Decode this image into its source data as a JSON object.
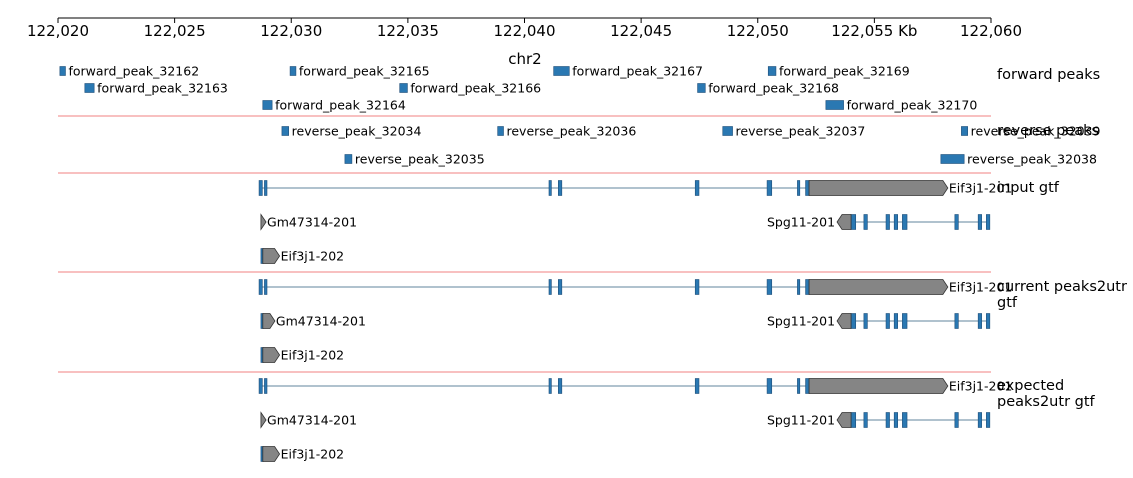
{
  "axis": {
    "start": 122020000,
    "end": 122060000,
    "ticks": [
      {
        "pos": 122020000,
        "label": "122,020"
      },
      {
        "pos": 122025000,
        "label": "122,025"
      },
      {
        "pos": 122030000,
        "label": "122,030"
      },
      {
        "pos": 122035000,
        "label": "122,035"
      },
      {
        "pos": 122040000,
        "label": "122,040"
      },
      {
        "pos": 122045000,
        "label": "122,045"
      },
      {
        "pos": 122050000,
        "label": "122,050"
      },
      {
        "pos": 122055000,
        "label": "122,055 Kb"
      },
      {
        "pos": 122060000,
        "label": "122,060"
      }
    ],
    "chrom": "chr2"
  },
  "colors": {
    "feature": "#2a78b2",
    "utr": "#858585",
    "separator": "#f08080"
  },
  "peak_tracks": [
    {
      "title": "forward peaks",
      "peaks": [
        {
          "name": "forward_peak_32162",
          "start": 122020080,
          "end": 122020320,
          "row": 0
        },
        {
          "name": "forward_peak_32163",
          "start": 122021150,
          "end": 122021550,
          "row": 1
        },
        {
          "name": "forward_peak_32164",
          "start": 122028780,
          "end": 122029180,
          "row": 2
        },
        {
          "name": "forward_peak_32165",
          "start": 122029950,
          "end": 122030200,
          "row": 0
        },
        {
          "name": "forward_peak_32166",
          "start": 122034650,
          "end": 122034980,
          "row": 1
        },
        {
          "name": "forward_peak_32167",
          "start": 122041250,
          "end": 122041920,
          "row": 0
        },
        {
          "name": "forward_peak_32168",
          "start": 122047420,
          "end": 122047750,
          "row": 1
        },
        {
          "name": "forward_peak_32169",
          "start": 122050450,
          "end": 122050780,
          "row": 0
        },
        {
          "name": "forward_peak_32170",
          "start": 122052920,
          "end": 122053680,
          "row": 2
        }
      ]
    },
    {
      "title": "reverse peaks",
      "peaks": [
        {
          "name": "reverse_peak_32034",
          "start": 122029600,
          "end": 122029890,
          "row": 0
        },
        {
          "name": "reverse_peak_32035",
          "start": 122032300,
          "end": 122032600,
          "row": 1
        },
        {
          "name": "reverse_peak_32036",
          "start": 122038850,
          "end": 122039100,
          "row": 0
        },
        {
          "name": "reverse_peak_32037",
          "start": 122048500,
          "end": 122048920,
          "row": 0
        },
        {
          "name": "reverse_peak_32038",
          "start": 122057850,
          "end": 122058850,
          "row": 1
        },
        {
          "name": "reverse_peak_32039",
          "start": 122058730,
          "end": 122059000,
          "row": 0
        }
      ]
    }
  ],
  "gene_tracks": [
    {
      "title_lines": [
        "input gtf"
      ],
      "transcripts": [
        {
          "name": "Eif3j1-201",
          "row": 0,
          "strand": "+",
          "start": 122028620,
          "end": 122058150,
          "exons": [
            [
              122028620,
              122028760
            ],
            [
              122028850,
              122028960
            ],
            [
              122041050,
              122041120
            ],
            [
              122041450,
              122041600
            ],
            [
              122047320,
              122047480
            ],
            [
              122050400,
              122050600
            ],
            [
              122051700,
              122051800
            ],
            [
              122052050,
              122052200
            ]
          ],
          "utr": [
            122052200,
            122058150
          ]
        },
        {
          "name": "Gm47314-201",
          "row": 1,
          "strand": "+",
          "start": 122028700,
          "end": 122028920,
          "exons": [],
          "utr": [
            122028700,
            122028920
          ],
          "shape": "half"
        },
        {
          "name": "Spg11-201",
          "row": 1,
          "strand": "-",
          "start": 122053400,
          "end": 122059950,
          "exons": [
            [
              122054000,
              122054200
            ],
            [
              122054550,
              122054700
            ],
            [
              122055500,
              122055650
            ],
            [
              122055850,
              122056000
            ],
            [
              122056200,
              122056400
            ],
            [
              122058450,
              122058600
            ],
            [
              122059450,
              122059600
            ],
            [
              122059800,
              122059950
            ]
          ],
          "utr": [
            122053400,
            122054000
          ],
          "label_side": "left"
        },
        {
          "name": "Eif3j1-202",
          "row": 2,
          "strand": "+",
          "start": 122028700,
          "end": 122029500,
          "exons": [
            [
              122028700,
              122028780
            ]
          ],
          "utr": [
            122028780,
            122029500
          ]
        }
      ]
    },
    {
      "title_lines": [
        "current peaks2utr",
        "gtf"
      ],
      "transcripts": [
        {
          "name": "Eif3j1-201",
          "row": 0,
          "strand": "+",
          "start": 122028620,
          "end": 122058150,
          "exons": [
            [
              122028620,
              122028760
            ],
            [
              122028850,
              122028960
            ],
            [
              122041050,
              122041120
            ],
            [
              122041450,
              122041600
            ],
            [
              122047320,
              122047480
            ],
            [
              122050400,
              122050600
            ],
            [
              122051700,
              122051800
            ],
            [
              122052050,
              122052200
            ]
          ],
          "utr": [
            122052200,
            122058150
          ]
        },
        {
          "name": "Gm47314-201",
          "row": 1,
          "strand": "+",
          "start": 122028700,
          "end": 122029300,
          "exons": [
            [
              122028700,
              122028780
            ]
          ],
          "utr": [
            122028780,
            122029300
          ]
        },
        {
          "name": "Spg11-201",
          "row": 1,
          "strand": "-",
          "start": 122053400,
          "end": 122059950,
          "exons": [
            [
              122054000,
              122054200
            ],
            [
              122054550,
              122054700
            ],
            [
              122055500,
              122055650
            ],
            [
              122055850,
              122056000
            ],
            [
              122056200,
              122056400
            ],
            [
              122058450,
              122058600
            ],
            [
              122059450,
              122059600
            ],
            [
              122059800,
              122059950
            ]
          ],
          "utr": [
            122053400,
            122054000
          ],
          "label_side": "left"
        },
        {
          "name": "Eif3j1-202",
          "row": 2,
          "strand": "+",
          "start": 122028700,
          "end": 122029500,
          "exons": [
            [
              122028700,
              122028780
            ]
          ],
          "utr": [
            122028780,
            122029500
          ]
        }
      ]
    },
    {
      "title_lines": [
        "expected",
        "peaks2utr gtf"
      ],
      "transcripts": [
        {
          "name": "Eif3j1-201",
          "row": 0,
          "strand": "+",
          "start": 122028620,
          "end": 122058150,
          "exons": [
            [
              122028620,
              122028760
            ],
            [
              122028850,
              122028960
            ],
            [
              122041050,
              122041120
            ],
            [
              122041450,
              122041600
            ],
            [
              122047320,
              122047480
            ],
            [
              122050400,
              122050600
            ],
            [
              122051700,
              122051800
            ],
            [
              122052050,
              122052200
            ]
          ],
          "utr": [
            122052200,
            122058150
          ]
        },
        {
          "name": "Gm47314-201",
          "row": 1,
          "strand": "+",
          "start": 122028700,
          "end": 122028920,
          "exons": [],
          "utr": [
            122028700,
            122028920
          ],
          "shape": "half"
        },
        {
          "name": "Spg11-201",
          "row": 1,
          "strand": "-",
          "start": 122053400,
          "end": 122059950,
          "exons": [
            [
              122054000,
              122054200
            ],
            [
              122054550,
              122054700
            ],
            [
              122055500,
              122055650
            ],
            [
              122055850,
              122056000
            ],
            [
              122056200,
              122056400
            ],
            [
              122058450,
              122058600
            ],
            [
              122059450,
              122059600
            ],
            [
              122059800,
              122059950
            ]
          ],
          "utr": [
            122053400,
            122054000
          ],
          "label_side": "left"
        },
        {
          "name": "Eif3j1-202",
          "row": 2,
          "strand": "+",
          "start": 122028700,
          "end": 122029500,
          "exons": [
            [
              122028700,
              122028780
            ]
          ],
          "utr": [
            122028780,
            122029500
          ]
        }
      ]
    }
  ]
}
